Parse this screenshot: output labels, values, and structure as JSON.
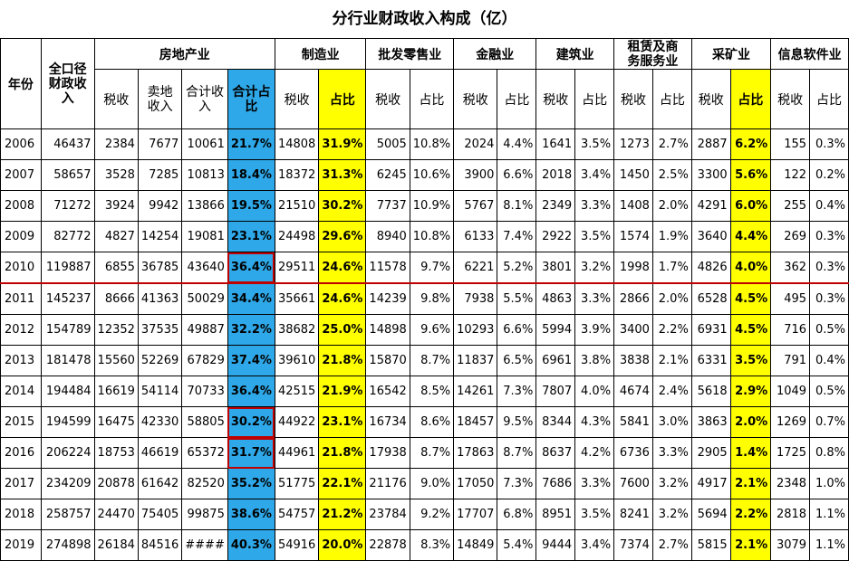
{
  "title": "分行业财政收入构成（亿）",
  "headers": {
    "year": "年份",
    "total": "全口径财政收入",
    "real_estate": "房地产业",
    "manufacturing": "制造业",
    "wholesale": "批发零售业",
    "finance": "金融业",
    "construction": "建筑业",
    "leasing": "租赁及商务服务业",
    "mining": "采矿业",
    "software": "信息软件业",
    "tax": "税收",
    "land": "卖地收入",
    "sum": "合计收入",
    "sum_ratio": "合计占比",
    "ratio": "占比"
  },
  "rows": [
    [
      "2006",
      "46437",
      "2384",
      "7677",
      "10061",
      "21.7%",
      "14808",
      "31.9%",
      "5005",
      "10.8%",
      "2024",
      "4.4%",
      "1641",
      "3.5%",
      "1273",
      "2.7%",
      "2887",
      "6.2%",
      "155",
      "0.3%"
    ],
    [
      "2007",
      "58657",
      "3528",
      "7285",
      "10813",
      "18.4%",
      "18372",
      "31.3%",
      "6245",
      "10.6%",
      "3900",
      "6.6%",
      "2018",
      "3.4%",
      "1450",
      "2.5%",
      "3300",
      "5.6%",
      "122",
      "0.2%"
    ],
    [
      "2008",
      "71272",
      "3924",
      "9942",
      "13866",
      "19.5%",
      "21510",
      "30.2%",
      "7737",
      "10.9%",
      "5767",
      "8.1%",
      "2349",
      "3.3%",
      "1408",
      "2.0%",
      "4291",
      "6.0%",
      "255",
      "0.4%"
    ],
    [
      "2009",
      "82772",
      "4827",
      "14254",
      "19081",
      "23.1%",
      "24498",
      "29.6%",
      "8940",
      "10.8%",
      "6133",
      "7.4%",
      "2922",
      "3.5%",
      "1574",
      "1.9%",
      "3640",
      "4.4%",
      "269",
      "0.3%"
    ],
    [
      "2010",
      "119887",
      "6855",
      "36785",
      "43640",
      "36.4%",
      "29511",
      "24.6%",
      "11578",
      "9.7%",
      "6221",
      "5.2%",
      "3801",
      "3.2%",
      "1998",
      "1.7%",
      "4826",
      "4.0%",
      "362",
      "0.3%"
    ],
    [
      "2011",
      "145237",
      "8666",
      "41363",
      "50029",
      "34.4%",
      "35661",
      "24.6%",
      "14239",
      "9.8%",
      "7938",
      "5.5%",
      "4863",
      "3.3%",
      "2866",
      "2.0%",
      "6528",
      "4.5%",
      "495",
      "0.3%"
    ],
    [
      "2012",
      "154789",
      "12352",
      "37535",
      "49887",
      "32.2%",
      "38682",
      "25.0%",
      "14898",
      "9.6%",
      "10293",
      "6.6%",
      "5994",
      "3.9%",
      "3400",
      "2.2%",
      "6931",
      "4.5%",
      "716",
      "0.5%"
    ],
    [
      "2013",
      "181478",
      "15560",
      "52269",
      "67829",
      "37.4%",
      "39610",
      "21.8%",
      "15870",
      "8.7%",
      "11837",
      "6.5%",
      "6961",
      "3.8%",
      "3838",
      "2.1%",
      "6331",
      "3.5%",
      "791",
      "0.4%"
    ],
    [
      "2014",
      "194484",
      "16619",
      "54114",
      "70733",
      "36.4%",
      "42515",
      "21.9%",
      "16542",
      "8.5%",
      "14261",
      "7.3%",
      "7807",
      "4.0%",
      "4674",
      "2.4%",
      "5618",
      "2.9%",
      "1049",
      "0.5%"
    ],
    [
      "2015",
      "194599",
      "16475",
      "42330",
      "58805",
      "30.2%",
      "44922",
      "23.1%",
      "16734",
      "8.6%",
      "18457",
      "9.5%",
      "8344",
      "4.3%",
      "5841",
      "3.0%",
      "3863",
      "2.0%",
      "1269",
      "0.7%"
    ],
    [
      "2016",
      "206224",
      "18753",
      "46619",
      "65372",
      "31.7%",
      "44961",
      "21.8%",
      "17938",
      "8.7%",
      "17863",
      "8.7%",
      "8637",
      "4.2%",
      "6736",
      "3.3%",
      "2905",
      "1.4%",
      "1725",
      "0.8%"
    ],
    [
      "2017",
      "234209",
      "20878",
      "61642",
      "82520",
      "35.2%",
      "51775",
      "22.1%",
      "21176",
      "9.0%",
      "17050",
      "7.3%",
      "7686",
      "3.3%",
      "7600",
      "3.2%",
      "4917",
      "2.1%",
      "2348",
      "1.0%"
    ],
    [
      "2018",
      "258757",
      "24470",
      "75405",
      "99875",
      "38.6%",
      "54757",
      "21.2%",
      "23784",
      "9.2%",
      "17707",
      "6.8%",
      "8951",
      "3.5%",
      "8241",
      "3.2%",
      "5694",
      "2.2%",
      "2818",
      "1.1%"
    ],
    [
      "2019",
      "274898",
      "26184",
      "84516",
      "####",
      "40.3%",
      "54916",
      "20.0%",
      "22878",
      "8.3%",
      "14849",
      "5.4%",
      "9444",
      "3.4%",
      "7374",
      "2.7%",
      "5815",
      "2.1%",
      "3079",
      "1.1%"
    ]
  ],
  "colors": {
    "blue": "#2EA8E8",
    "yellow": "#FFFF00",
    "red": "#C00000"
  }
}
